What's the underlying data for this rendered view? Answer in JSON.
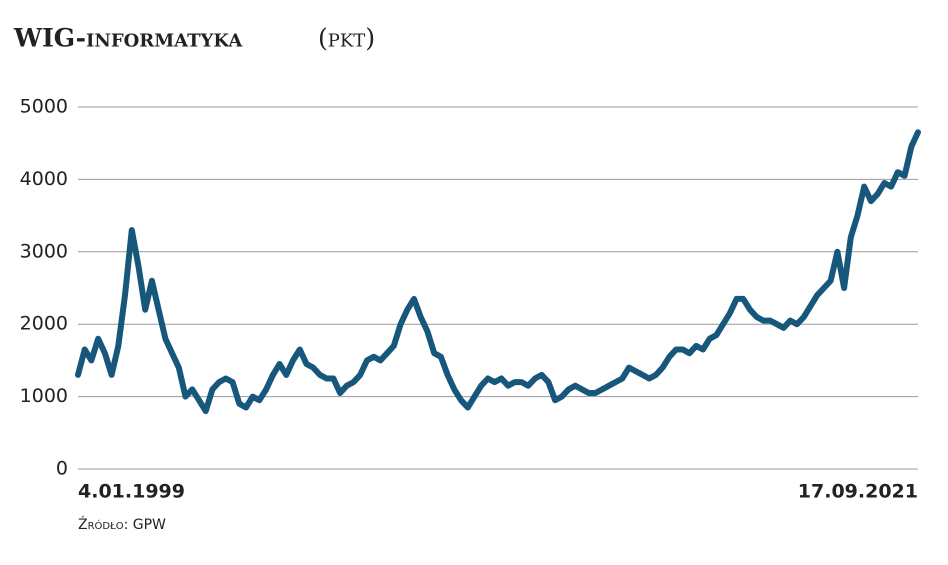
{
  "chart_data": {
    "type": "line",
    "title": "WIG-informatyka",
    "unit": "(pkt)",
    "source": "Źródło: GPW",
    "categories": [
      "4.01.1999",
      null,
      null,
      null,
      null,
      null,
      null,
      null,
      null,
      null,
      null,
      null,
      null,
      null,
      null,
      null,
      null,
      null,
      null,
      null,
      null,
      null,
      null,
      null,
      null,
      null,
      null,
      null,
      null,
      null,
      null,
      null,
      null,
      null,
      null,
      null,
      null,
      null,
      null,
      null,
      null,
      null,
      null,
      null,
      null,
      null,
      null,
      null,
      null,
      null,
      null,
      null,
      null,
      null,
      null,
      null,
      null,
      null,
      null,
      null,
      null,
      null,
      null,
      null,
      null,
      null,
      null,
      null,
      null,
      null,
      null,
      null,
      null,
      null,
      null,
      null,
      null,
      null,
      null,
      null,
      null,
      null,
      null,
      null,
      null,
      null,
      null,
      null,
      null,
      null,
      null,
      null,
      null,
      null,
      null,
      null,
      null,
      null,
      null,
      null,
      null,
      null,
      null,
      null,
      null,
      null,
      null,
      null,
      null,
      null,
      null,
      null,
      null,
      null,
      null,
      null,
      null,
      null,
      null,
      null,
      null,
      null,
      null,
      null,
      null,
      "17.09.2021"
    ],
    "values": [
      1300,
      1650,
      1500,
      1800,
      1600,
      1300,
      1700,
      2400,
      3300,
      2800,
      2200,
      2600,
      2200,
      1800,
      1600,
      1400,
      1000,
      1100,
      950,
      800,
      1100,
      1200,
      1250,
      1200,
      900,
      850,
      1000,
      950,
      1100,
      1300,
      1450,
      1300,
      1500,
      1650,
      1450,
      1400,
      1300,
      1250,
      1250,
      1050,
      1150,
      1200,
      1300,
      1500,
      1550,
      1500,
      1600,
      1700,
      2000,
      2200,
      2350,
      2100,
      1900,
      1600,
      1550,
      1300,
      1100,
      950,
      850,
      1000,
      1150,
      1250,
      1200,
      1250,
      1150,
      1200,
      1200,
      1150,
      1250,
      1300,
      1200,
      950,
      1000,
      1100,
      1150,
      1100,
      1050,
      1050,
      1100,
      1150,
      1200,
      1250,
      1400,
      1350,
      1300,
      1250,
      1300,
      1400,
      1550,
      1650,
      1650,
      1600,
      1700,
      1650,
      1800,
      1850,
      2000,
      2150,
      2350,
      2350,
      2200,
      2100,
      2050,
      2050,
      2000,
      1950,
      2050,
      2000,
      2100,
      2250,
      2400,
      2500,
      2600,
      3000,
      2500,
      3200,
      3500,
      3900,
      3700,
      3800,
      3950,
      3900,
      4100,
      4050,
      4450,
      4650
    ],
    "color": "#17577b",
    "ylim": [
      0,
      5000
    ],
    "yticks": [
      0,
      1000,
      2000,
      3000,
      4000,
      5000
    ],
    "grid": true
  }
}
